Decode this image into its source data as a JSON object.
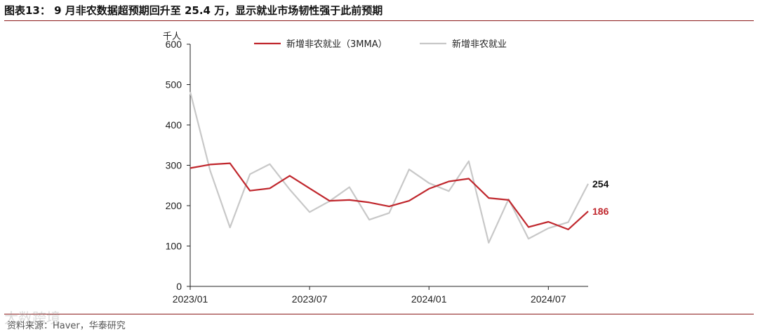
{
  "header": {
    "title": "图表13： 9 月非农数据超预期回升至 25.4 万，显示就业市场韧性强于此前预期"
  },
  "footer": {
    "source": "资料来源：Haver，华泰研究",
    "watermark": "大数跨境"
  },
  "chart_data": {
    "type": "line",
    "unit_label": "千人",
    "ylim": [
      0,
      600
    ],
    "yticks": [
      0,
      100,
      200,
      300,
      400,
      500,
      600
    ],
    "xtick_labels": [
      "2023/01",
      "2023/07",
      "2024/01",
      "2024/07"
    ],
    "x": [
      "2023/01",
      "2023/02",
      "2023/03",
      "2023/04",
      "2023/05",
      "2023/06",
      "2023/07",
      "2023/08",
      "2023/09",
      "2023/10",
      "2023/11",
      "2023/12",
      "2024/01",
      "2024/02",
      "2024/03",
      "2024/04",
      "2024/05",
      "2024/06",
      "2024/07",
      "2024/08",
      "2024/09"
    ],
    "legend_position": "top-right",
    "series": [
      {
        "name": "新增非农就业（3MMA）",
        "color": "#c0272d",
        "values": [
          293,
          302,
          305,
          237,
          243,
          274,
          243,
          212,
          214,
          208,
          198,
          212,
          242,
          260,
          267,
          219,
          214,
          147,
          160,
          141,
          186
        ],
        "end_label": "186"
      },
      {
        "name": "新增非农就业",
        "color": "#c8c8c8",
        "values": [
          482,
          287,
          146,
          278,
          303,
          240,
          184,
          211,
          246,
          165,
          182,
          290,
          256,
          236,
          310,
          108,
          216,
          118,
          144,
          159,
          254
        ],
        "end_label": "254"
      }
    ]
  }
}
